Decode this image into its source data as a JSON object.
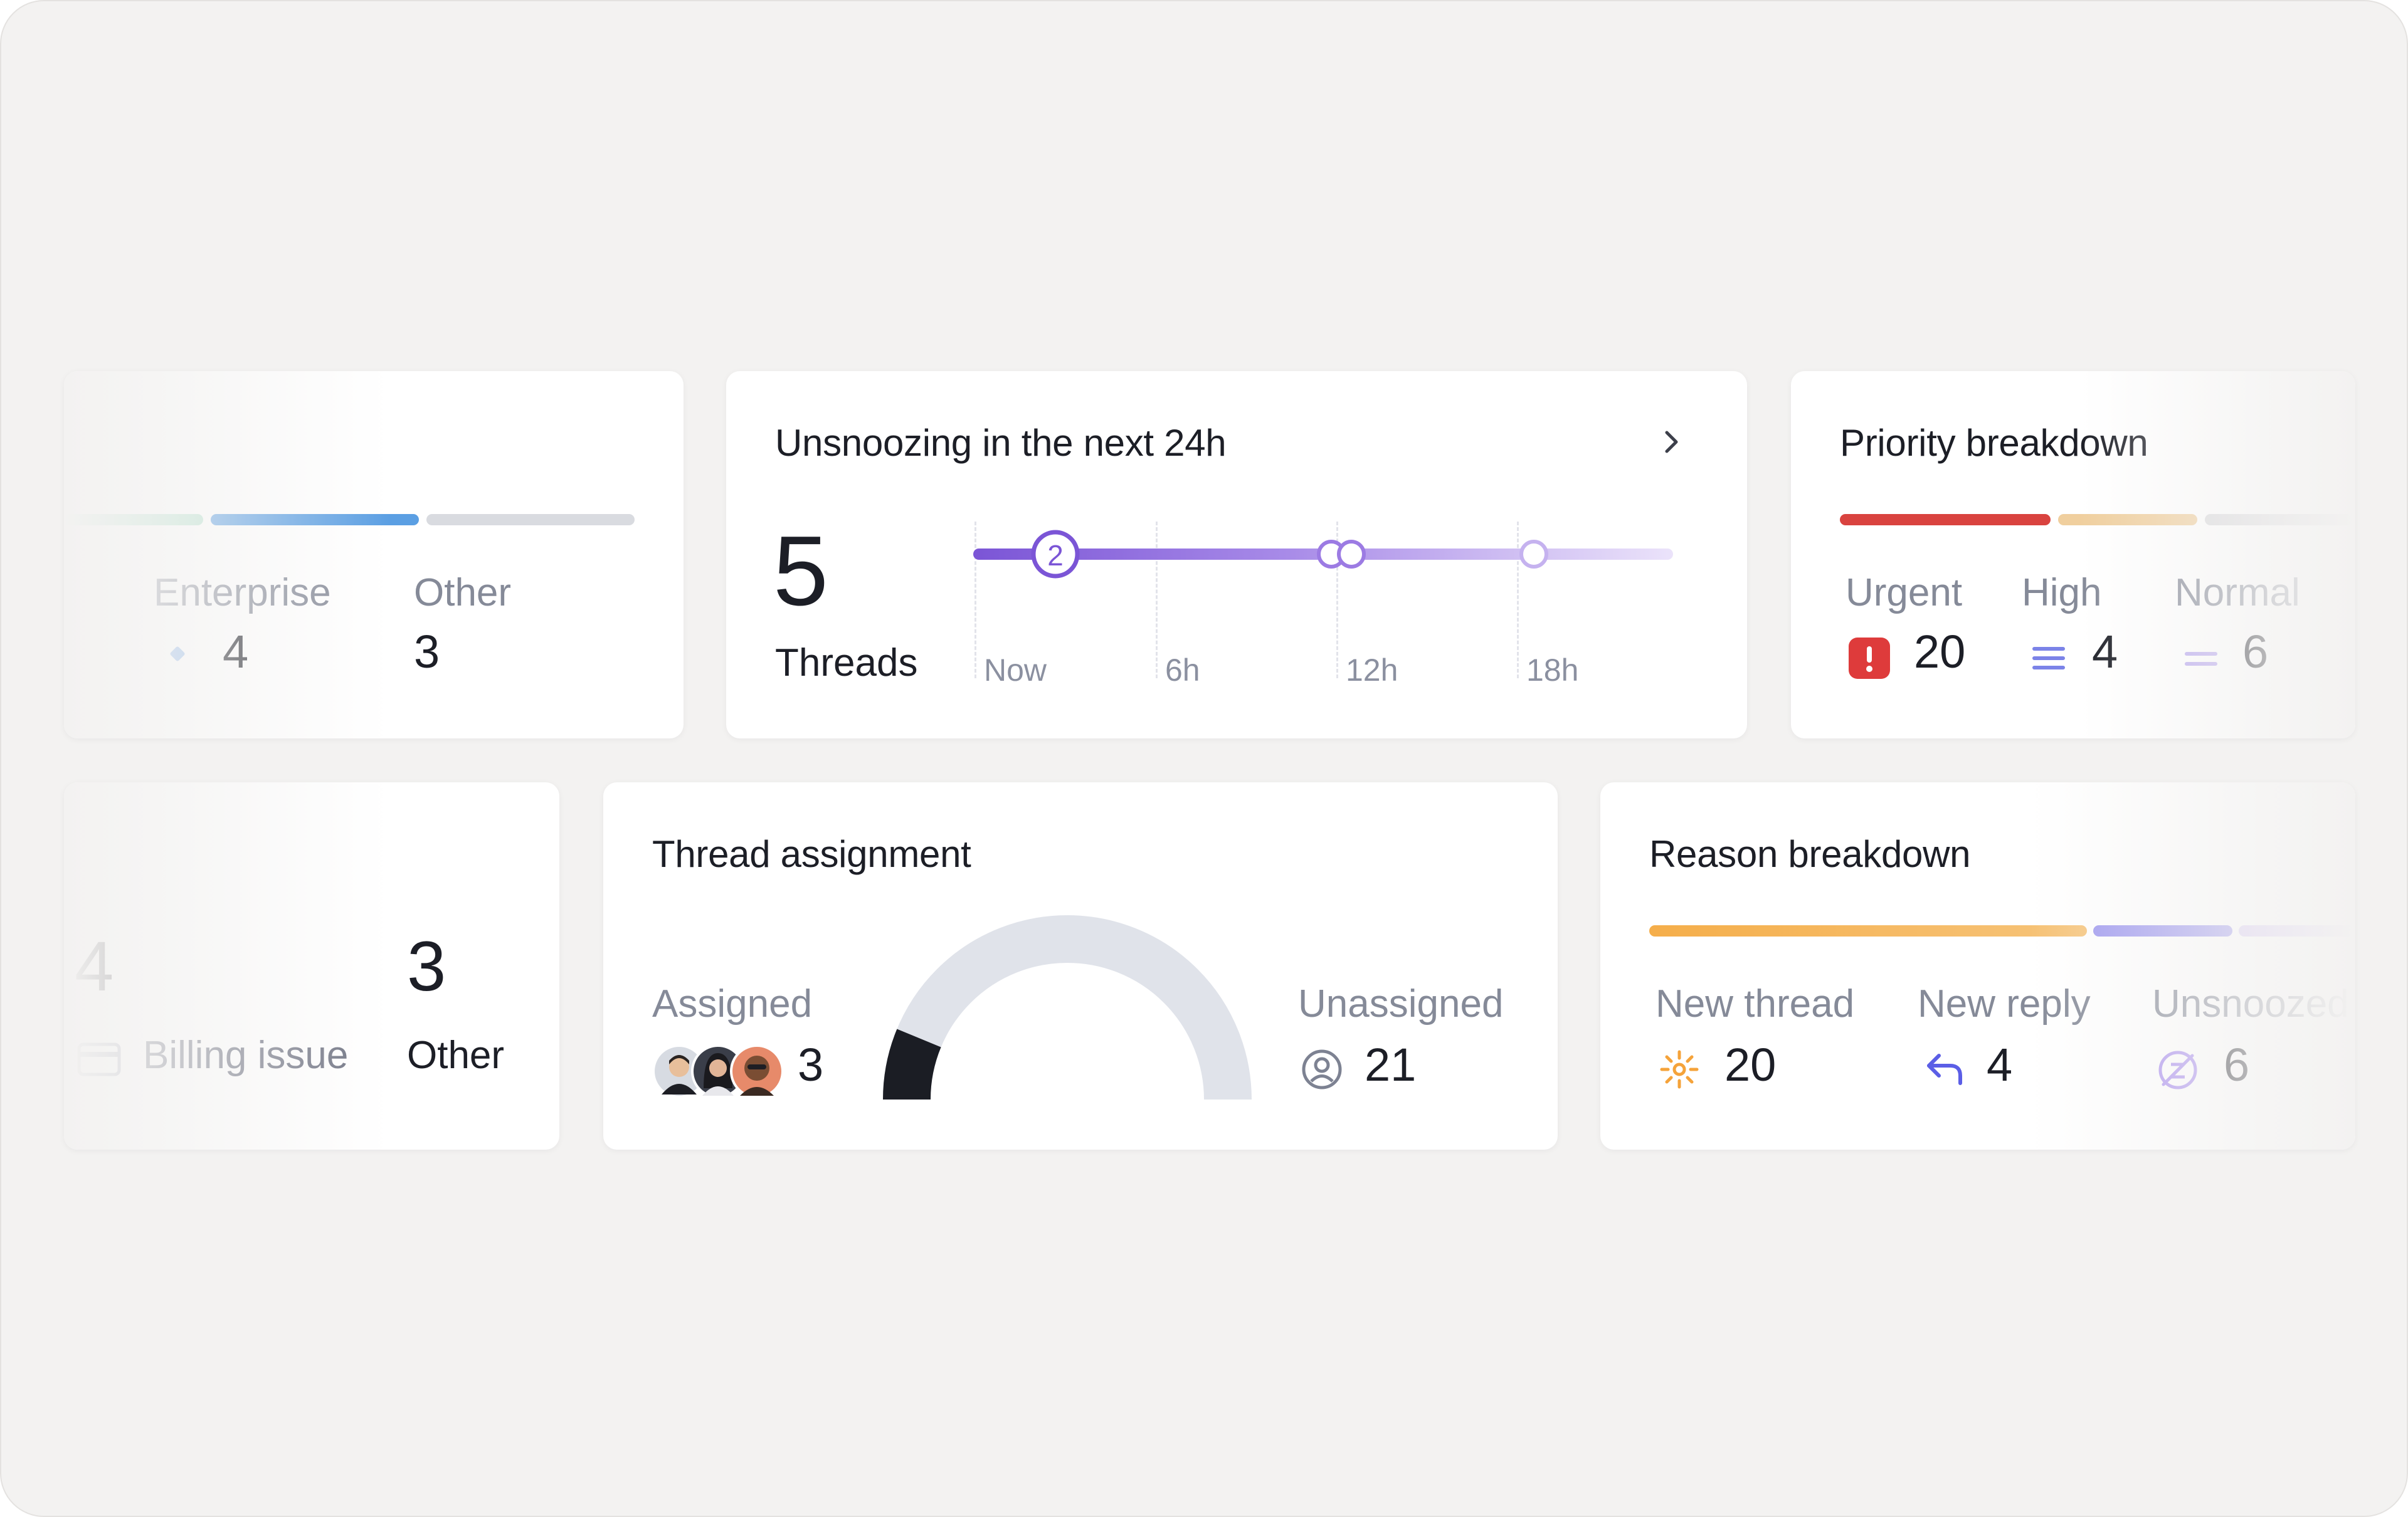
{
  "segment_card": {
    "items": [
      {
        "label": "Enterprise",
        "value": "4",
        "icon": "diamond-icon"
      },
      {
        "label": "Other",
        "value": "3"
      }
    ],
    "bar_colors": [
      "#b7e3cf",
      "#5b9fe3",
      "#d9dbe0"
    ]
  },
  "unsnooze_card": {
    "title": "Unsnoozing in the next 24h",
    "count": "5",
    "count_label": "Threads",
    "ticks": [
      "Now",
      "6h",
      "12h",
      "18h"
    ],
    "first_marker_count": "2",
    "accent": "#7b55d6"
  },
  "priority_card": {
    "title": "Priority breakdown",
    "items": [
      {
        "label": "Urgent",
        "value": "20",
        "icon": "urgent-icon",
        "color": "#de3b3b"
      },
      {
        "label": "High",
        "value": "4",
        "icon": "high-priority-icon",
        "color": "#7b83e8"
      },
      {
        "label": "Normal",
        "value": "6",
        "icon": "normal-priority-icon",
        "color": "#b7a6ef"
      }
    ],
    "bar_colors": [
      "#d9433f",
      "#f0cf9e",
      "#d9d9dc"
    ]
  },
  "category_card": {
    "items": [
      {
        "label": "Billing issue",
        "value": "4",
        "icon": "credit-card-icon"
      },
      {
        "label": "Other",
        "value": "3"
      }
    ]
  },
  "assignment_card": {
    "title": "Thread assignment",
    "assigned_label": "Assigned",
    "assigned_value": "3",
    "unassigned_label": "Unassigned",
    "unassigned_value": "21",
    "assigned_fraction": 0.125
  },
  "reason_card": {
    "title": "Reason breakdown",
    "items": [
      {
        "label": "New thread",
        "value": "20",
        "icon": "sparkle-icon",
        "color": "#f5a33a"
      },
      {
        "label": "New reply",
        "value": "4",
        "icon": "reply-icon",
        "color": "#5b5ee6"
      },
      {
        "label": "Unsnoozed",
        "value": "6",
        "icon": "unsnoozed-icon",
        "color": "#a78bef"
      }
    ],
    "bar_colors": [
      "#f5b451",
      "#9d97ef",
      "#d7c9f5"
    ]
  }
}
